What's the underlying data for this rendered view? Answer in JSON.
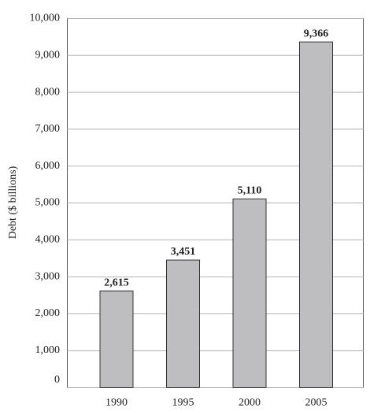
{
  "chart_data": {
    "type": "bar",
    "y_label": "Debt ($ billions)",
    "categories": [
      "1990",
      "1995",
      "2000",
      "2005"
    ],
    "values": [
      2615,
      3451,
      5110,
      9366
    ],
    "value_labels": [
      "2,615",
      "3,451",
      "5,110",
      "9,366"
    ],
    "color": "#bebec1",
    "ylim": [
      0,
      10000
    ],
    "yticks": [
      0,
      {
        "value": 1000,
        "label": "1,000"
      },
      {
        "value": 2000,
        "label": "2,000"
      },
      {
        "value": 3000,
        "label": "3,000"
      },
      {
        "value": 4000,
        "label": "4,000"
      },
      {
        "value": 5000,
        "label": "5,000"
      },
      {
        "value": 6000,
        "label": "6,000"
      },
      {
        "value": 7000,
        "label": "7,000"
      },
      {
        "value": 8000,
        "label": "8,000"
      },
      {
        "value": 9000,
        "label": "9,000"
      },
      {
        "value": 10000,
        "label": "10,000"
      }
    ],
    "grid": true
  }
}
